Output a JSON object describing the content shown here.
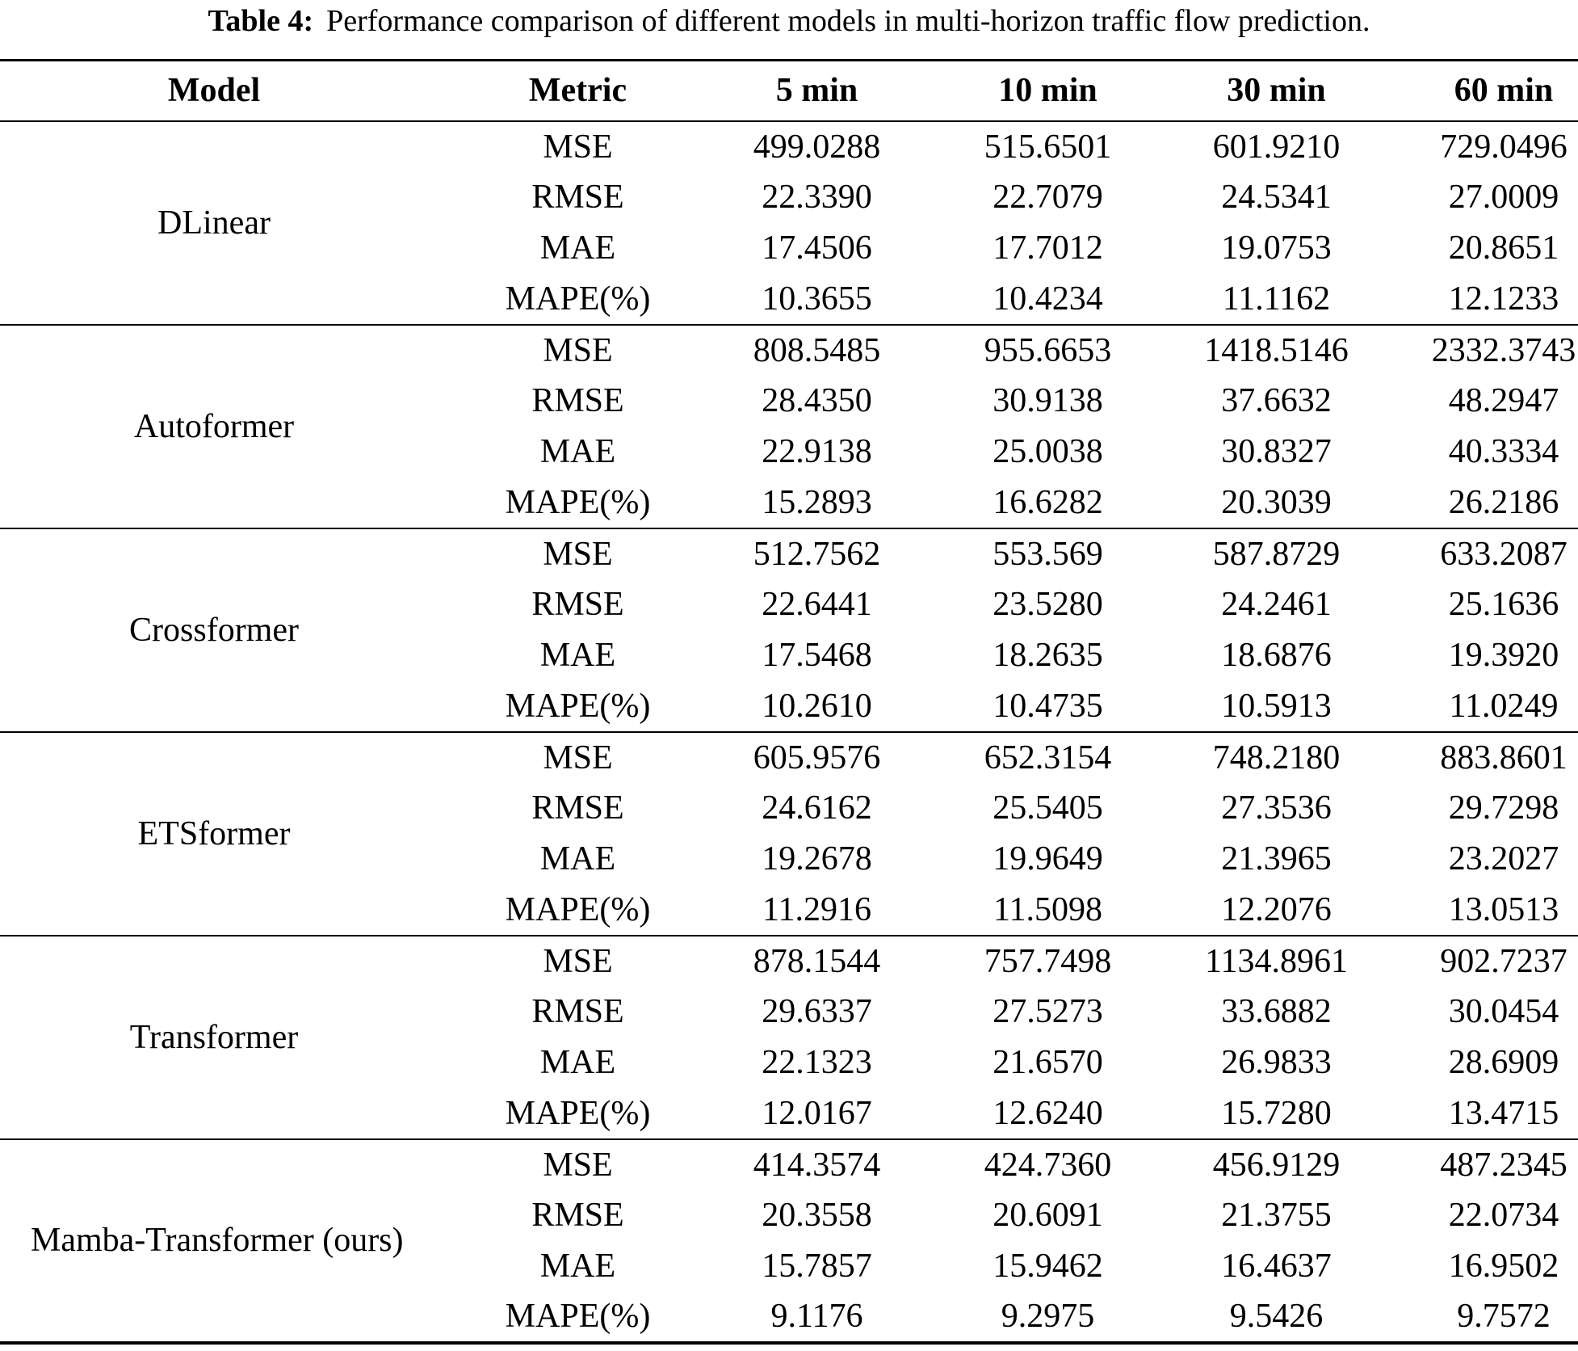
{
  "caption": {
    "label": "Table 4:",
    "text": "Performance comparison of different models in multi-horizon traffic flow prediction."
  },
  "table": {
    "columns": [
      "Model",
      "Metric",
      "5 min",
      "10 min",
      "30 min",
      "60 min"
    ],
    "groups": [
      {
        "model": "DLinear",
        "rows": [
          {
            "metric": "MSE",
            "values": [
              "499.0288",
              "515.6501",
              "601.9210",
              "729.0496"
            ]
          },
          {
            "metric": "RMSE",
            "values": [
              "22.3390",
              "22.7079",
              "24.5341",
              "27.0009"
            ]
          },
          {
            "metric": "MAE",
            "values": [
              "17.4506",
              "17.7012",
              "19.0753",
              "20.8651"
            ]
          },
          {
            "metric": "MAPE(%)",
            "values": [
              "10.3655",
              "10.4234",
              "11.1162",
              "12.1233"
            ]
          }
        ]
      },
      {
        "model": "Autoformer",
        "rows": [
          {
            "metric": "MSE",
            "values": [
              "808.5485",
              "955.6653",
              "1418.5146",
              "2332.3743"
            ]
          },
          {
            "metric": "RMSE",
            "values": [
              "28.4350",
              "30.9138",
              "37.6632",
              "48.2947"
            ]
          },
          {
            "metric": "MAE",
            "values": [
              "22.9138",
              "25.0038",
              "30.8327",
              "40.3334"
            ]
          },
          {
            "metric": "MAPE(%)",
            "values": [
              "15.2893",
              "16.6282",
              "20.3039",
              "26.2186"
            ]
          }
        ]
      },
      {
        "model": "Crossformer",
        "rows": [
          {
            "metric": "MSE",
            "values": [
              "512.7562",
              "553.569",
              "587.8729",
              "633.2087"
            ]
          },
          {
            "metric": "RMSE",
            "values": [
              "22.6441",
              "23.5280",
              "24.2461",
              "25.1636"
            ]
          },
          {
            "metric": "MAE",
            "values": [
              "17.5468",
              "18.2635",
              "18.6876",
              "19.3920"
            ]
          },
          {
            "metric": "MAPE(%)",
            "values": [
              "10.2610",
              "10.4735",
              "10.5913",
              "11.0249"
            ]
          }
        ]
      },
      {
        "model": "ETSformer",
        "rows": [
          {
            "metric": "MSE",
            "values": [
              "605.9576",
              "652.3154",
              "748.2180",
              "883.8601"
            ]
          },
          {
            "metric": "RMSE",
            "values": [
              "24.6162",
              "25.5405",
              "27.3536",
              "29.7298"
            ]
          },
          {
            "metric": "MAE",
            "values": [
              "19.2678",
              "19.9649",
              "21.3965",
              "23.2027"
            ]
          },
          {
            "metric": "MAPE(%)",
            "values": [
              "11.2916",
              "11.5098",
              "12.2076",
              "13.0513"
            ]
          }
        ]
      },
      {
        "model": "Transformer",
        "rows": [
          {
            "metric": "MSE",
            "values": [
              "878.1544",
              "757.7498",
              "1134.8961",
              "902.7237"
            ]
          },
          {
            "metric": "RMSE",
            "values": [
              "29.6337",
              "27.5273",
              "33.6882",
              "30.0454"
            ]
          },
          {
            "metric": "MAE",
            "values": [
              "22.1323",
              "21.6570",
              "26.9833",
              "28.6909"
            ]
          },
          {
            "metric": "MAPE(%)",
            "values": [
              "12.0167",
              "12.6240",
              "15.7280",
              "13.4715"
            ]
          }
        ]
      },
      {
        "model": "Mamba-Transformer (ours)",
        "rows": [
          {
            "metric": "MSE",
            "values": [
              "414.3574",
              "424.7360",
              "456.9129",
              "487.2345"
            ]
          },
          {
            "metric": "RMSE",
            "values": [
              "20.3558",
              "20.6091",
              "21.3755",
              "22.0734"
            ]
          },
          {
            "metric": "MAE",
            "values": [
              "15.7857",
              "15.9462",
              "16.4637",
              "16.9502"
            ]
          },
          {
            "metric": "MAPE(%)",
            "values": [
              "9.1176",
              "9.2975",
              "9.5426",
              "9.7572"
            ]
          }
        ]
      }
    ]
  }
}
